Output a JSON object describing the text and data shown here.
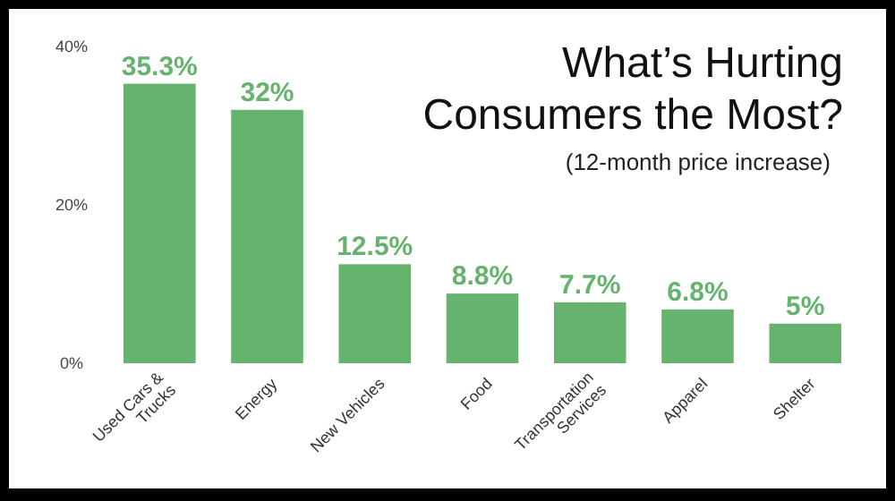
{
  "chart_data": {
    "type": "bar",
    "title": "What’s Hurting\nConsumers the Most?",
    "subtitle": "(12-month price increase)",
    "categories": [
      "Used Cars &\nTrucks",
      "Energy",
      "New Vehicles",
      "Food",
      "Transportation\nServices",
      "Apparel",
      "Shelter"
    ],
    "values": [
      35.3,
      32,
      12.5,
      8.8,
      7.7,
      6.8,
      5
    ],
    "value_labels": [
      "35.3%",
      "32%",
      "12.5%",
      "8.8%",
      "7.7%",
      "6.8%",
      "5%"
    ],
    "color": "#66b36f",
    "ylim": [
      0,
      40
    ],
    "yticks": [
      {
        "value": 0,
        "label": "0%"
      },
      {
        "value": 20,
        "label": "20%"
      },
      {
        "value": 40,
        "label": "40%"
      }
    ],
    "grid": false
  }
}
